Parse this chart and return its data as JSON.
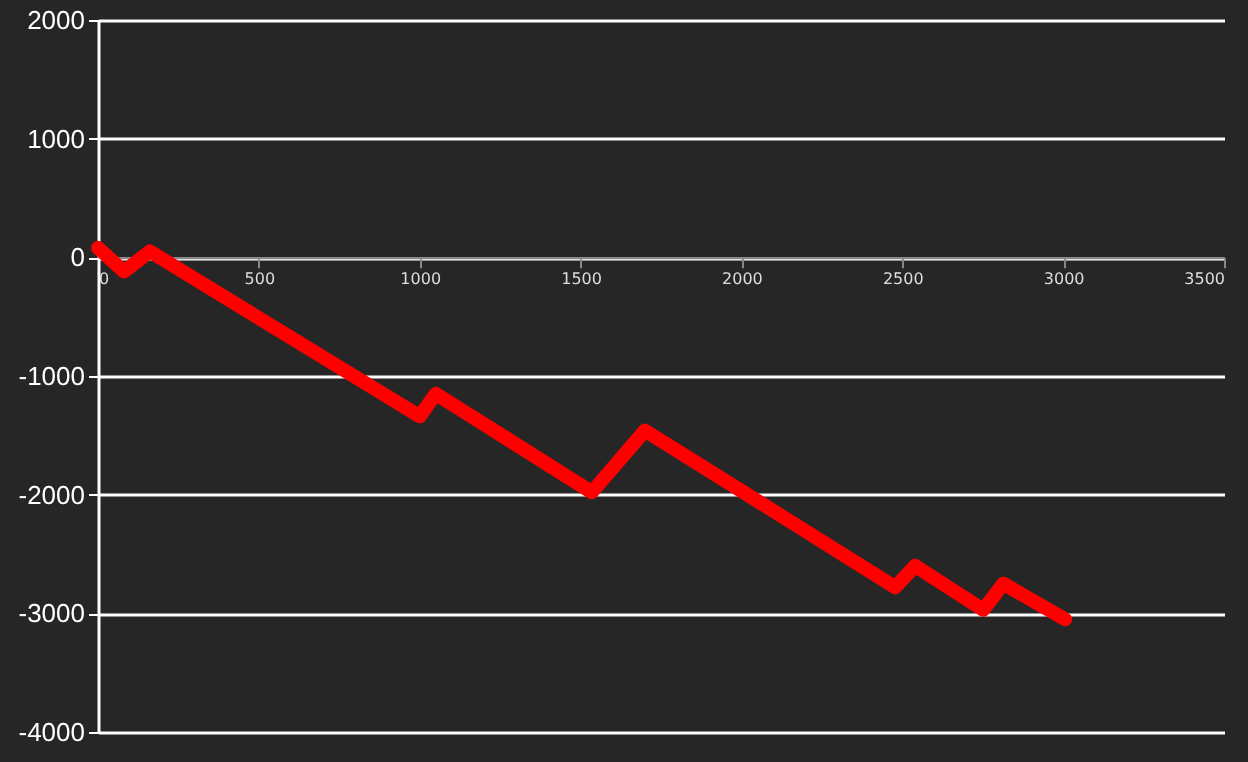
{
  "chart_data": {
    "type": "line",
    "x": [
      0,
      81,
      161,
      1000,
      1050,
      1535,
      1700,
      2478,
      2540,
      2752,
      2814,
      3006
    ],
    "series": [
      {
        "color": "#ff0000",
        "values": [
          80,
          -120,
          50,
          -1340,
          -1150,
          -1980,
          -1460,
          -2780,
          -2600,
          -2970,
          -2750,
          -3050
        ]
      }
    ],
    "xlim": [
      0,
      3500
    ],
    "xticks": [
      0,
      500,
      1000,
      1500,
      2000,
      2500,
      3000,
      3500
    ],
    "ylim": [
      -4000,
      2000
    ],
    "yticks": [
      -4000,
      -3000,
      -2000,
      -1000,
      0,
      1000,
      2000
    ],
    "grid": "y",
    "line_style": "solid"
  }
}
